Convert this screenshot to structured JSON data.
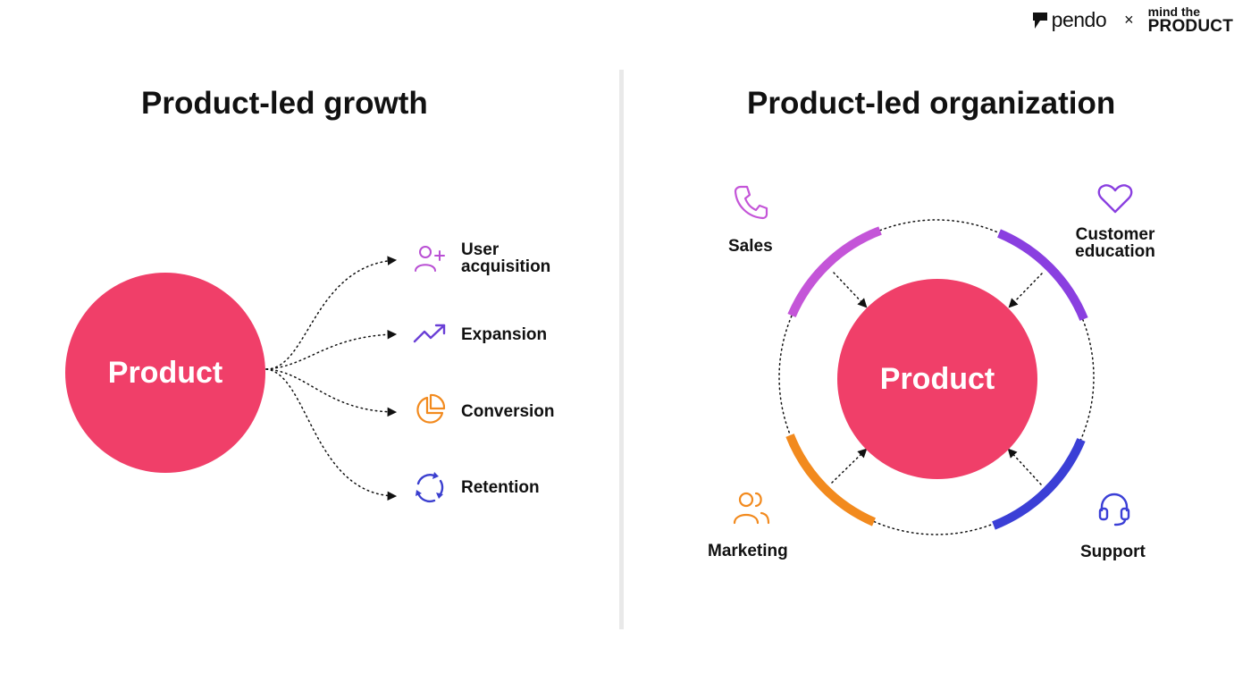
{
  "header": {
    "pendo_logo": "pendo",
    "separator": "×",
    "mtp_top": "mind the",
    "mtp_bottom": "PRODUCT"
  },
  "left": {
    "title": "Product-led growth",
    "center": "Product",
    "items": [
      {
        "label_line1": "User",
        "label_line2": "acquisition",
        "icon": "user-plus-icon",
        "color": "#b94fd4"
      },
      {
        "label": "Expansion",
        "icon": "trending-up-icon",
        "color": "#6a3fd6"
      },
      {
        "label": "Conversion",
        "icon": "pie-chart-icon",
        "color": "#f28a1e"
      },
      {
        "label": "Retention",
        "icon": "refresh-icon",
        "color": "#3b3fcf"
      }
    ]
  },
  "right": {
    "title": "Product-led organization",
    "center": "Product",
    "items": [
      {
        "label": "Sales",
        "icon": "phone-icon",
        "color": "#c455d8"
      },
      {
        "label_line1": "Customer",
        "label_line2": "education",
        "icon": "heart-icon",
        "color": "#8a3fe0"
      },
      {
        "label": "Marketing",
        "icon": "users-icon",
        "color": "#f28a1e"
      },
      {
        "label": "Support",
        "icon": "headset-icon",
        "color": "#3b3fd6"
      }
    ]
  },
  "colors": {
    "product_circle": "#f03f69",
    "text": "#111111",
    "divider": "#e9e9e9"
  }
}
